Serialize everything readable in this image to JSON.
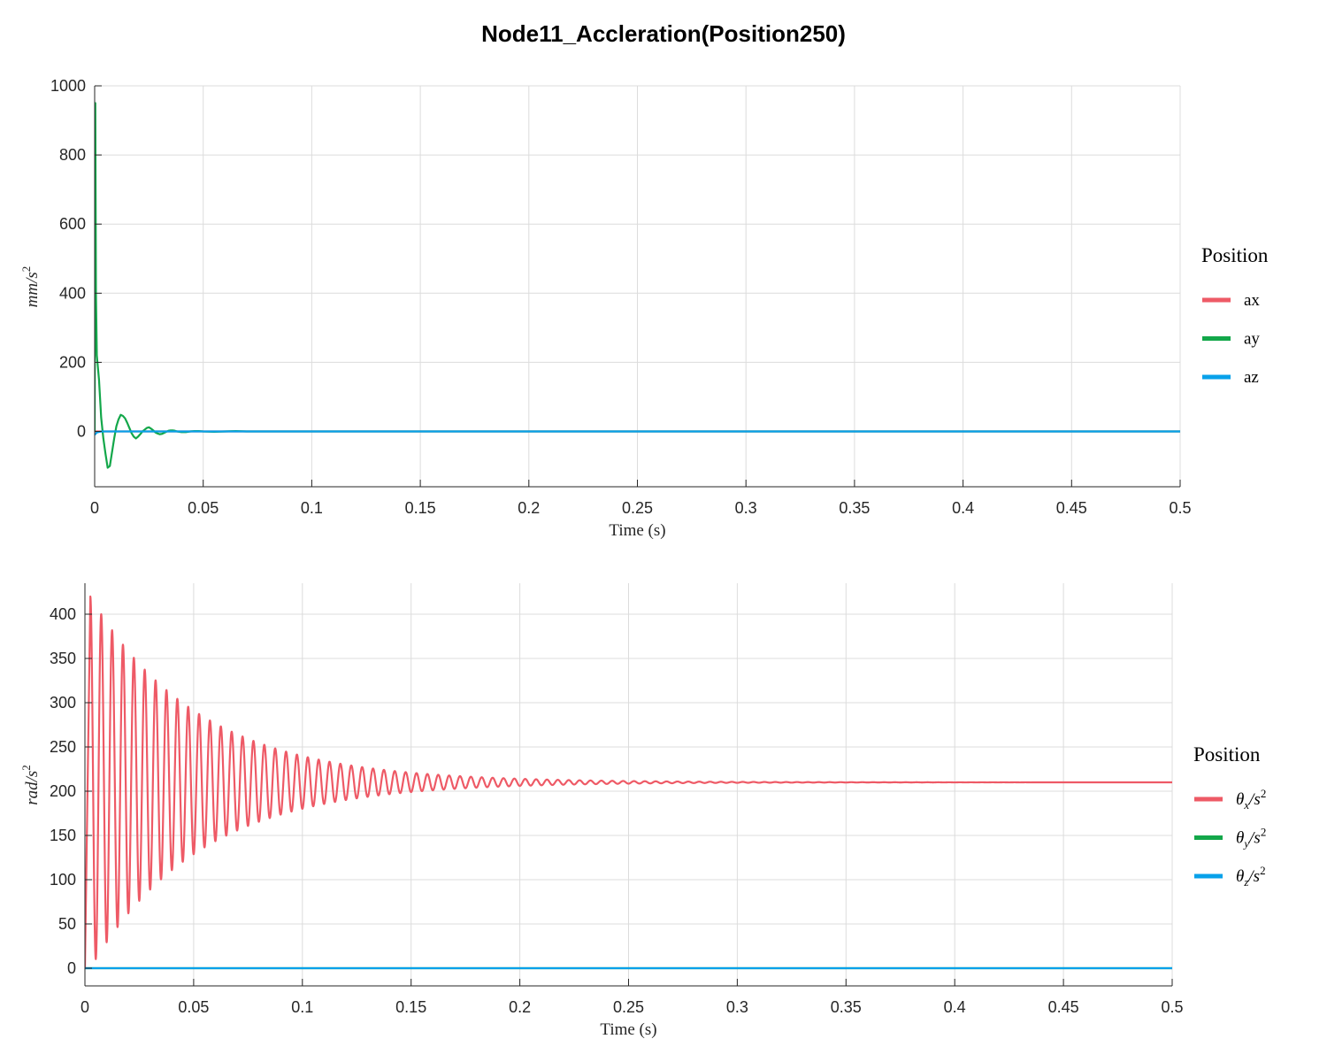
{
  "title": "Node11_Accleration(Position250)",
  "chart_data": [
    {
      "type": "line",
      "xlabel": "Time (s)",
      "ylabel": "mm/s²",
      "ylabel_base": "mm/s",
      "ylabel_exp": "2",
      "xlim": [
        0,
        0.5
      ],
      "ylim": [
        -160,
        1000
      ],
      "xticks": [
        0,
        0.05,
        0.1,
        0.15,
        0.2,
        0.25,
        0.3,
        0.35,
        0.4,
        0.45,
        0.5
      ],
      "xtick_labels": [
        "0",
        "0.05",
        "0.1",
        "0.15",
        "0.2",
        "0.25",
        "0.3",
        "0.35",
        "0.4",
        "0.45",
        "0.5"
      ],
      "yticks": [
        0,
        200,
        400,
        600,
        800,
        1000
      ],
      "ytick_labels": [
        "0",
        "200",
        "400",
        "600",
        "800",
        "1000"
      ],
      "grid": true,
      "legend": {
        "title": "Position",
        "placement": "right",
        "entries": [
          {
            "label": "ax",
            "color": "#ee5a66"
          },
          {
            "label": "ay",
            "color": "#13a74a"
          },
          {
            "label": "az",
            "color": "#08a1ea"
          }
        ]
      },
      "series": [
        {
          "name": "ax",
          "color": "#ee5a66",
          "x": [
            0,
            0.5
          ],
          "y": [
            0,
            0
          ]
        },
        {
          "name": "ay",
          "color": "#13a74a",
          "x": [
            0,
            0.0003,
            0.0006,
            0.001,
            0.002,
            0.003,
            0.004,
            0.005,
            0.006,
            0.007,
            0.008,
            0.009,
            0.01,
            0.011,
            0.012,
            0.013,
            0.014,
            0.015,
            0.016,
            0.017,
            0.018,
            0.019,
            0.02,
            0.021,
            0.022,
            0.023,
            0.024,
            0.025,
            0.026,
            0.027,
            0.028,
            0.029,
            0.03,
            0.031,
            0.032,
            0.033,
            0.034,
            0.035,
            0.036,
            0.037,
            0.038,
            0.04,
            0.042,
            0.044,
            0.046,
            0.048,
            0.05,
            0.055,
            0.06,
            0.065,
            0.07,
            0.08,
            0.09,
            0.1,
            0.5
          ],
          "y": [
            0,
            950,
            400,
            220,
            150,
            40,
            -20,
            -65,
            -105,
            -100,
            -60,
            -20,
            15,
            35,
            48,
            45,
            38,
            25,
            10,
            -5,
            -15,
            -20,
            -15,
            -8,
            0,
            5,
            10,
            12,
            8,
            3,
            -3,
            -6,
            -8,
            -7,
            -4,
            -1,
            2,
            3,
            3,
            2,
            0,
            -2,
            -2,
            0,
            1,
            1,
            0,
            -1,
            0,
            1,
            0,
            0,
            0,
            0,
            0
          ]
        },
        {
          "name": "az",
          "color": "#08a1ea",
          "x": [
            0,
            0.001,
            0.003,
            0.5
          ],
          "y": [
            -10,
            -3,
            0,
            0
          ]
        }
      ]
    },
    {
      "type": "line",
      "xlabel": "Time (s)",
      "ylabel": "rad/s²",
      "ylabel_base": "rad/s",
      "ylabel_exp": "2",
      "xlim": [
        0,
        0.5
      ],
      "ylim": [
        -20,
        435
      ],
      "xticks": [
        0,
        0.05,
        0.1,
        0.15,
        0.2,
        0.25,
        0.3,
        0.35,
        0.4,
        0.45,
        0.5
      ],
      "xtick_labels": [
        "0",
        "0.05",
        "0.1",
        "0.15",
        "0.2",
        "0.25",
        "0.3",
        "0.35",
        "0.4",
        "0.45",
        "0.5"
      ],
      "yticks": [
        0,
        50,
        100,
        150,
        200,
        250,
        300,
        350,
        400
      ],
      "ytick_labels": [
        "0",
        "50",
        "100",
        "150",
        "200",
        "250",
        "300",
        "350",
        "400"
      ],
      "grid": true,
      "legend": {
        "title": "Position",
        "placement": "right",
        "entries": [
          {
            "label": "θx/s²",
            "sym": "θ",
            "sub": "x",
            "den": "/s",
            "exp": "2",
            "color": "#ee5a66"
          },
          {
            "label": "θy/s²",
            "sym": "θ",
            "sub": "y",
            "den": "/s",
            "exp": "2",
            "color": "#13a74a"
          },
          {
            "label": "θz/s²",
            "sym": "θ",
            "sub": "z",
            "den": "/s",
            "exp": "2",
            "color": "#08a1ea"
          }
        ]
      },
      "series": [
        {
          "name": "θx/s²",
          "color": "#ee5a66",
          "model": {
            "form": "damped_cosine",
            "mean": 210,
            "amplitude": 210,
            "decay_per_s": 20,
            "frequency_hz": 200,
            "peak_at_s": 0.0025
          }
        },
        {
          "name": "θy/s²",
          "color": "#13a74a",
          "x": [
            0,
            0.5
          ],
          "y": [
            0,
            0
          ]
        },
        {
          "name": "θz/s²",
          "color": "#08a1ea",
          "x": [
            0,
            0.5
          ],
          "y": [
            0,
            0
          ]
        }
      ]
    }
  ]
}
